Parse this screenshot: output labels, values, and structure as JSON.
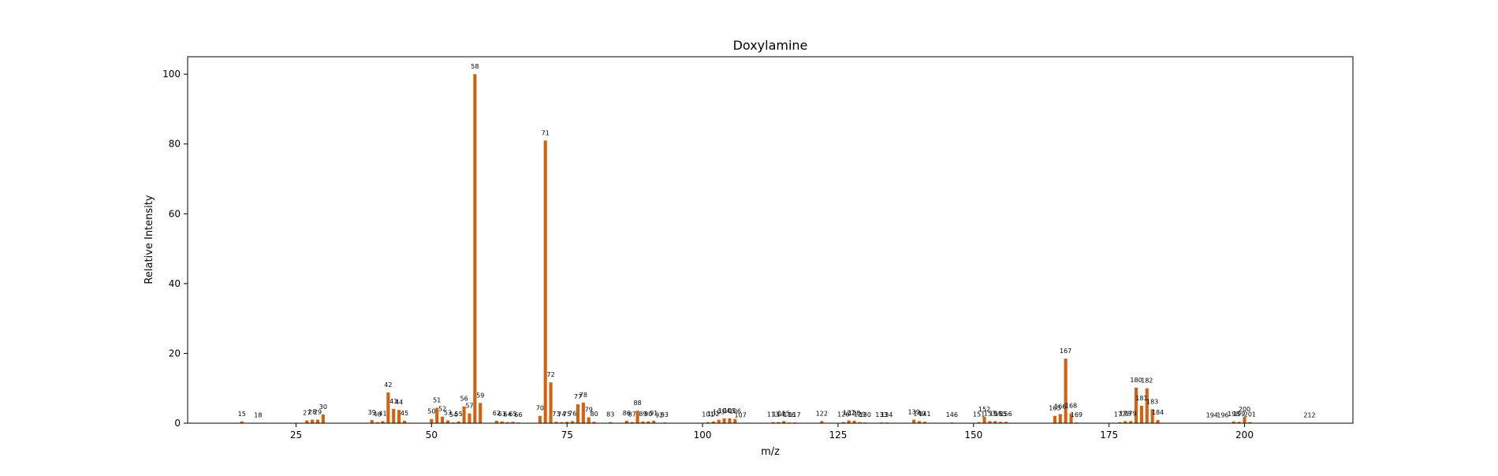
{
  "chart_data": {
    "type": "bar",
    "title": "Doxylamine",
    "xlabel": "m/z",
    "ylabel": "Relative Intensity",
    "xlim": [
      5,
      220
    ],
    "ylim": [
      0,
      105
    ],
    "xticks": [
      25,
      50,
      75,
      100,
      125,
      150,
      175,
      200
    ],
    "yticks": [
      0,
      20,
      40,
      60,
      80,
      100
    ],
    "grid": false,
    "bar_color": "#d2620f",
    "series": [
      {
        "x": [
          15,
          18,
          27,
          28,
          29,
          30,
          39,
          40,
          41,
          42,
          43,
          44,
          45,
          50,
          51,
          52,
          53,
          54,
          55,
          56,
          57,
          58,
          59,
          62,
          63,
          64,
          65,
          66,
          70,
          71,
          72,
          73,
          74,
          75,
          76,
          77,
          78,
          79,
          80,
          83,
          86,
          87,
          88,
          89,
          90,
          91,
          92,
          93,
          101,
          102,
          103,
          104,
          105,
          106,
          107,
          113,
          114,
          115,
          116,
          117,
          122,
          126,
          127,
          128,
          129,
          130,
          133,
          134,
          139,
          140,
          141,
          146,
          151,
          152,
          153,
          154,
          155,
          156,
          165,
          166,
          167,
          168,
          169,
          177,
          178,
          179,
          180,
          181,
          182,
          183,
          184,
          194,
          196,
          198,
          199,
          200,
          201,
          212
        ],
        "y": [
          0.5,
          0.1,
          0.8,
          1.0,
          1.0,
          2.5,
          0.9,
          0.3,
          0.6,
          8.8,
          4.1,
          3.8,
          0.7,
          1.2,
          4.4,
          1.9,
          0.8,
          0.2,
          0.5,
          4.8,
          2.8,
          100,
          5.8,
          0.7,
          0.5,
          0.3,
          0.4,
          0.2,
          2.1,
          81,
          11.7,
          0.4,
          0.3,
          0.4,
          0.6,
          5.4,
          5.9,
          1.7,
          0.4,
          0.3,
          0.7,
          0.3,
          3.6,
          0.5,
          0.5,
          0.7,
          0.1,
          0.2,
          0.3,
          0.5,
          1.0,
          1.4,
          1.4,
          1.2,
          0.1,
          0.3,
          0.3,
          0.6,
          0.2,
          0.2,
          0.6,
          0.3,
          0.8,
          0.7,
          0.3,
          0.2,
          0.2,
          0.2,
          1.0,
          0.6,
          0.4,
          0.2,
          0.3,
          1.8,
          0.6,
          0.6,
          0.4,
          0.4,
          2.1,
          2.6,
          18.5,
          2.8,
          0.2,
          0.3,
          0.6,
          0.6,
          10.2,
          5.0,
          10.0,
          4.0,
          0.9,
          0.1,
          0.1,
          0.5,
          0.4,
          1.8,
          0.3,
          0.1
        ]
      }
    ]
  }
}
